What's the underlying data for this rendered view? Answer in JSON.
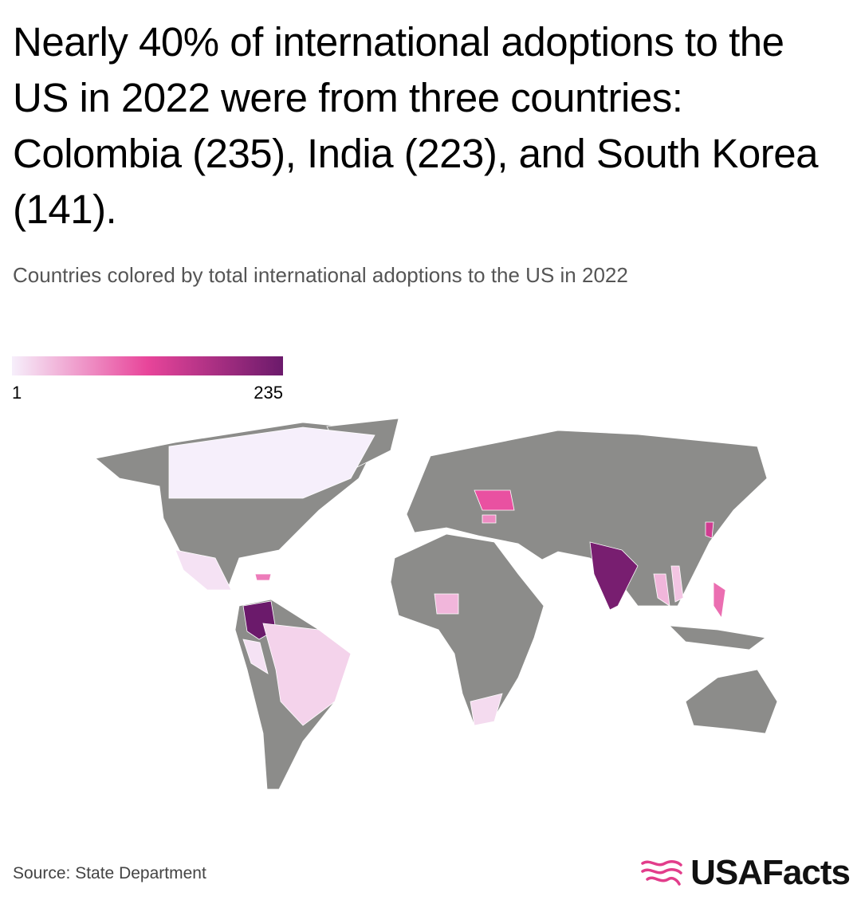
{
  "chart_data": {
    "type": "choropleth",
    "title": "Nearly 40% of international adoptions to the US in 2022 were from three countries: Colombia (235), India (223), and South Korea (141).",
    "subtitle": "Countries colored by total international adoptions to the US in 2022",
    "colorbar": {
      "ticks": [
        1,
        235
      ],
      "colors": [
        "#f6effb",
        "#e8459a",
        "#6b1a6b"
      ]
    },
    "no_data_color": "#8c8c8a",
    "values": [
      235,
      223,
      141,
      110,
      90,
      40,
      70,
      80,
      20,
      10,
      1,
      40,
      15,
      10,
      30
    ],
    "source": "Source: State Department",
    "logo": "USAFacts"
  }
}
